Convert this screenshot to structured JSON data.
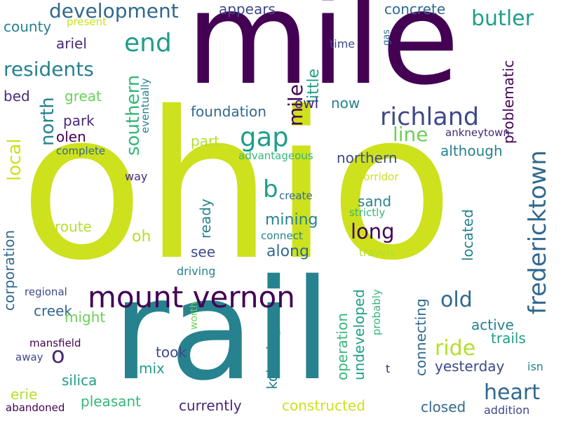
{
  "words": {
    "ohio": "ohio",
    "mile": "mile",
    "rail": "rail",
    "mount_vernon": "mount vernon",
    "fredericktown": "fredericktown",
    "richland": "richland",
    "gap": "gap",
    "end": "end",
    "development": "development",
    "residents": "residents",
    "butler": "butler",
    "southern": "southern",
    "north": "north",
    "local": "local",
    "line": "line",
    "long": "long",
    "b": "b",
    "o": "o",
    "old": "old",
    "heart": "heart",
    "ride": "ride",
    "mile_vertical": "mile",
    "appears": "appears",
    "concrete": "concrete",
    "little": "little",
    "county": "county",
    "present": "present",
    "time": "time",
    "gas": "gas",
    "ariel": "ariel",
    "eventually": "eventually",
    "problematic": "problematic",
    "great": "great",
    "bed": "bed",
    "owl": "owl",
    "now": "now",
    "foundation": "foundation",
    "park": "park",
    "olen": "olen",
    "complete": "complete",
    "part": "part",
    "ankneytown": "ankneytown",
    "although": "although",
    "northern": "northern",
    "advantageous": "advantageous",
    "way": "way",
    "corridor": "corridor",
    "create": "create",
    "sand": "sand",
    "strictly": "strictly",
    "mining": "mining",
    "ready": "ready",
    "route": "route",
    "oh": "oh",
    "connect": "connect",
    "located": "located",
    "corporation": "corporation",
    "see": "see",
    "along": "along",
    "travels": "travels",
    "driving": "driving",
    "regional": "regional",
    "worth": "worth",
    "probably": "probably",
    "undeveloped": "undeveloped",
    "operation": "operation",
    "connecting": "connecting",
    "kokosing": "kokosing",
    "creek": "creek",
    "might": "might",
    "active": "active",
    "trails": "trails",
    "mansfield": "mansfield",
    "away": "away",
    "took": "took",
    "mix": "mix",
    "yesterday": "yesterday",
    "isn": "isn",
    "t": "t",
    "silica": "silica",
    "erie": "erie",
    "pleasant": "pleasant",
    "currently": "currently",
    "constructed": "constructed",
    "closed": "closed",
    "addition": "addition",
    "abandoned": "abandoned"
  },
  "colors": {
    "dark_purple": "#440154",
    "purple": "#482878",
    "indigo": "#3e4989",
    "blue": "#31688e",
    "teal_blue": "#26828e",
    "teal": "#1f9e89",
    "green": "#35b779",
    "light_green": "#6ece58",
    "lime": "#b5de2b",
    "yellow_green": "#cde11d"
  }
}
